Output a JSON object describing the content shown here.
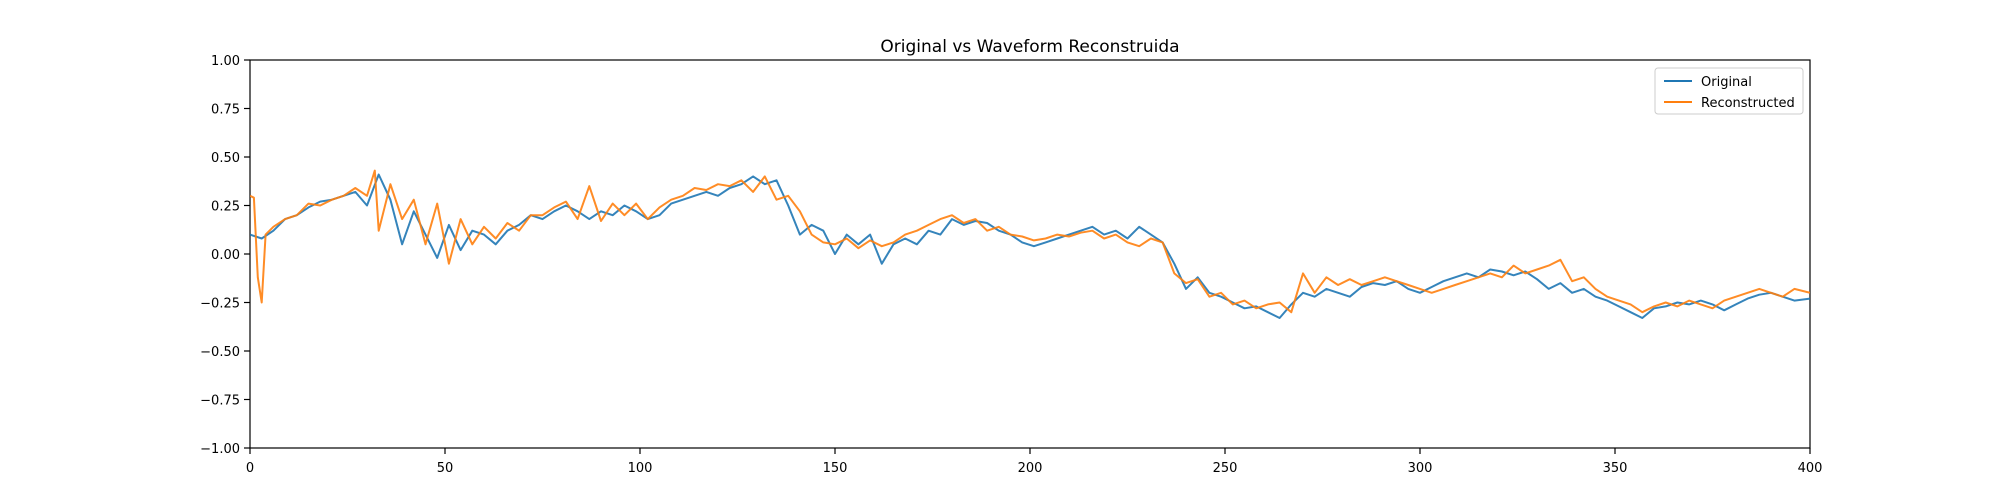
{
  "chart_data": {
    "type": "line",
    "title": "Original vs Waveform Reconstruida",
    "xlabel": "",
    "ylabel": "",
    "xlim": [
      0,
      400
    ],
    "ylim": [
      -1.0,
      1.0
    ],
    "x_ticks": [
      0,
      50,
      100,
      150,
      200,
      250,
      300,
      350,
      400
    ],
    "x_tick_labels": [
      "0",
      "50",
      "100",
      "150",
      "200",
      "250",
      "300",
      "350",
      "400"
    ],
    "y_ticks": [
      -1.0,
      -0.75,
      -0.5,
      -0.25,
      0.0,
      0.25,
      0.5,
      0.75,
      1.0
    ],
    "y_tick_labels": [
      "−1.00",
      "−0.75",
      "−0.50",
      "−0.25",
      "0.00",
      "0.25",
      "0.50",
      "0.75",
      "1.00"
    ],
    "grid": false,
    "legend": {
      "position": "top-right"
    },
    "series": [
      {
        "name": "Original",
        "color": "#1f77b4",
        "x": [
          0,
          3,
          6,
          9,
          12,
          15,
          18,
          21,
          24,
          27,
          30,
          33,
          36,
          39,
          42,
          45,
          48,
          51,
          54,
          57,
          60,
          63,
          66,
          69,
          72,
          75,
          78,
          81,
          84,
          87,
          90,
          93,
          96,
          99,
          102,
          105,
          108,
          111,
          114,
          117,
          120,
          123,
          126,
          129,
          132,
          135,
          138,
          141,
          144,
          147,
          150,
          153,
          156,
          159,
          162,
          165,
          168,
          171,
          174,
          177,
          180,
          183,
          186,
          189,
          192,
          195,
          198,
          201,
          204,
          207,
          210,
          213,
          216,
          219,
          222,
          225,
          228,
          231,
          234,
          237,
          240,
          243,
          246,
          249,
          252,
          255,
          258,
          261,
          264,
          267,
          270,
          273,
          276,
          279,
          282,
          285,
          288,
          291,
          294,
          297,
          300,
          303,
          306,
          309,
          312,
          315,
          318,
          321,
          324,
          327,
          330,
          333,
          336,
          339,
          342,
          345,
          348,
          351,
          354,
          357,
          360,
          363,
          366,
          369,
          372,
          375,
          378,
          381,
          384,
          387,
          390,
          393,
          396,
          400
        ],
        "values": [
          0.1,
          0.08,
          0.12,
          0.18,
          0.2,
          0.24,
          0.27,
          0.28,
          0.3,
          0.32,
          0.25,
          0.41,
          0.28,
          0.05,
          0.22,
          0.1,
          -0.02,
          0.15,
          0.02,
          0.12,
          0.1,
          0.05,
          0.12,
          0.15,
          0.2,
          0.18,
          0.22,
          0.25,
          0.22,
          0.18,
          0.22,
          0.2,
          0.25,
          0.22,
          0.18,
          0.2,
          0.26,
          0.28,
          0.3,
          0.32,
          0.3,
          0.34,
          0.36,
          0.4,
          0.36,
          0.38,
          0.25,
          0.1,
          0.15,
          0.12,
          0.0,
          0.1,
          0.05,
          0.1,
          -0.05,
          0.05,
          0.08,
          0.05,
          0.12,
          0.1,
          0.18,
          0.15,
          0.17,
          0.16,
          0.12,
          0.1,
          0.06,
          0.04,
          0.06,
          0.08,
          0.1,
          0.12,
          0.14,
          0.1,
          0.12,
          0.08,
          0.14,
          0.1,
          0.06,
          -0.05,
          -0.18,
          -0.12,
          -0.2,
          -0.22,
          -0.25,
          -0.28,
          -0.27,
          -0.3,
          -0.33,
          -0.26,
          -0.2,
          -0.22,
          -0.18,
          -0.2,
          -0.22,
          -0.17,
          -0.15,
          -0.16,
          -0.14,
          -0.18,
          -0.2,
          -0.17,
          -0.14,
          -0.12,
          -0.1,
          -0.12,
          -0.08,
          -0.09,
          -0.11,
          -0.09,
          -0.13,
          -0.18,
          -0.15,
          -0.2,
          -0.18,
          -0.22,
          -0.24,
          -0.27,
          -0.3,
          -0.33,
          -0.28,
          -0.27,
          -0.25,
          -0.26,
          -0.24,
          -0.26,
          -0.29,
          -0.26,
          -0.23,
          -0.21,
          -0.2,
          -0.22,
          -0.24,
          -0.23
        ]
      },
      {
        "name": "Reconstructed",
        "color": "#ff7f0e",
        "x": [
          0,
          1,
          2,
          3,
          4,
          6,
          9,
          12,
          15,
          18,
          21,
          24,
          27,
          30,
          32,
          33,
          36,
          39,
          42,
          45,
          48,
          51,
          54,
          57,
          60,
          63,
          66,
          69,
          72,
          75,
          78,
          81,
          84,
          87,
          90,
          93,
          96,
          99,
          102,
          105,
          108,
          111,
          114,
          117,
          120,
          123,
          126,
          129,
          132,
          135,
          138,
          141,
          144,
          147,
          150,
          153,
          156,
          159,
          162,
          165,
          168,
          171,
          174,
          177,
          180,
          183,
          186,
          189,
          192,
          195,
          198,
          201,
          204,
          207,
          210,
          213,
          216,
          219,
          222,
          225,
          228,
          231,
          234,
          237,
          240,
          243,
          246,
          249,
          252,
          255,
          258,
          261,
          264,
          267,
          270,
          273,
          276,
          279,
          282,
          285,
          288,
          291,
          294,
          297,
          300,
          303,
          306,
          309,
          312,
          315,
          318,
          321,
          324,
          327,
          330,
          333,
          336,
          339,
          342,
          345,
          348,
          351,
          354,
          357,
          360,
          363,
          366,
          369,
          372,
          375,
          378,
          381,
          384,
          387,
          390,
          393,
          396,
          400
        ],
        "values": [
          0.3,
          0.29,
          -0.12,
          -0.25,
          0.1,
          0.14,
          0.18,
          0.2,
          0.26,
          0.25,
          0.28,
          0.3,
          0.34,
          0.3,
          0.43,
          0.12,
          0.36,
          0.18,
          0.28,
          0.05,
          0.26,
          -0.05,
          0.18,
          0.05,
          0.14,
          0.08,
          0.16,
          0.12,
          0.2,
          0.2,
          0.24,
          0.27,
          0.18,
          0.35,
          0.17,
          0.26,
          0.2,
          0.26,
          0.18,
          0.24,
          0.28,
          0.3,
          0.34,
          0.33,
          0.36,
          0.35,
          0.38,
          0.32,
          0.4,
          0.28,
          0.3,
          0.22,
          0.1,
          0.06,
          0.05,
          0.08,
          0.03,
          0.07,
          0.04,
          0.06,
          0.1,
          0.12,
          0.15,
          0.18,
          0.2,
          0.16,
          0.18,
          0.12,
          0.14,
          0.1,
          0.09,
          0.07,
          0.08,
          0.1,
          0.09,
          0.11,
          0.12,
          0.08,
          0.1,
          0.06,
          0.04,
          0.08,
          0.06,
          -0.1,
          -0.15,
          -0.13,
          -0.22,
          -0.2,
          -0.26,
          -0.24,
          -0.28,
          -0.26,
          -0.25,
          -0.3,
          -0.1,
          -0.2,
          -0.12,
          -0.16,
          -0.13,
          -0.16,
          -0.14,
          -0.12,
          -0.14,
          -0.16,
          -0.18,
          -0.2,
          -0.18,
          -0.16,
          -0.14,
          -0.12,
          -0.1,
          -0.12,
          -0.06,
          -0.1,
          -0.08,
          -0.06,
          -0.03,
          -0.14,
          -0.12,
          -0.18,
          -0.22,
          -0.24,
          -0.26,
          -0.3,
          -0.27,
          -0.25,
          -0.27,
          -0.24,
          -0.26,
          -0.28,
          -0.24,
          -0.22,
          -0.2,
          -0.18,
          -0.2,
          -0.22,
          -0.18,
          -0.2
        ]
      }
    ]
  }
}
